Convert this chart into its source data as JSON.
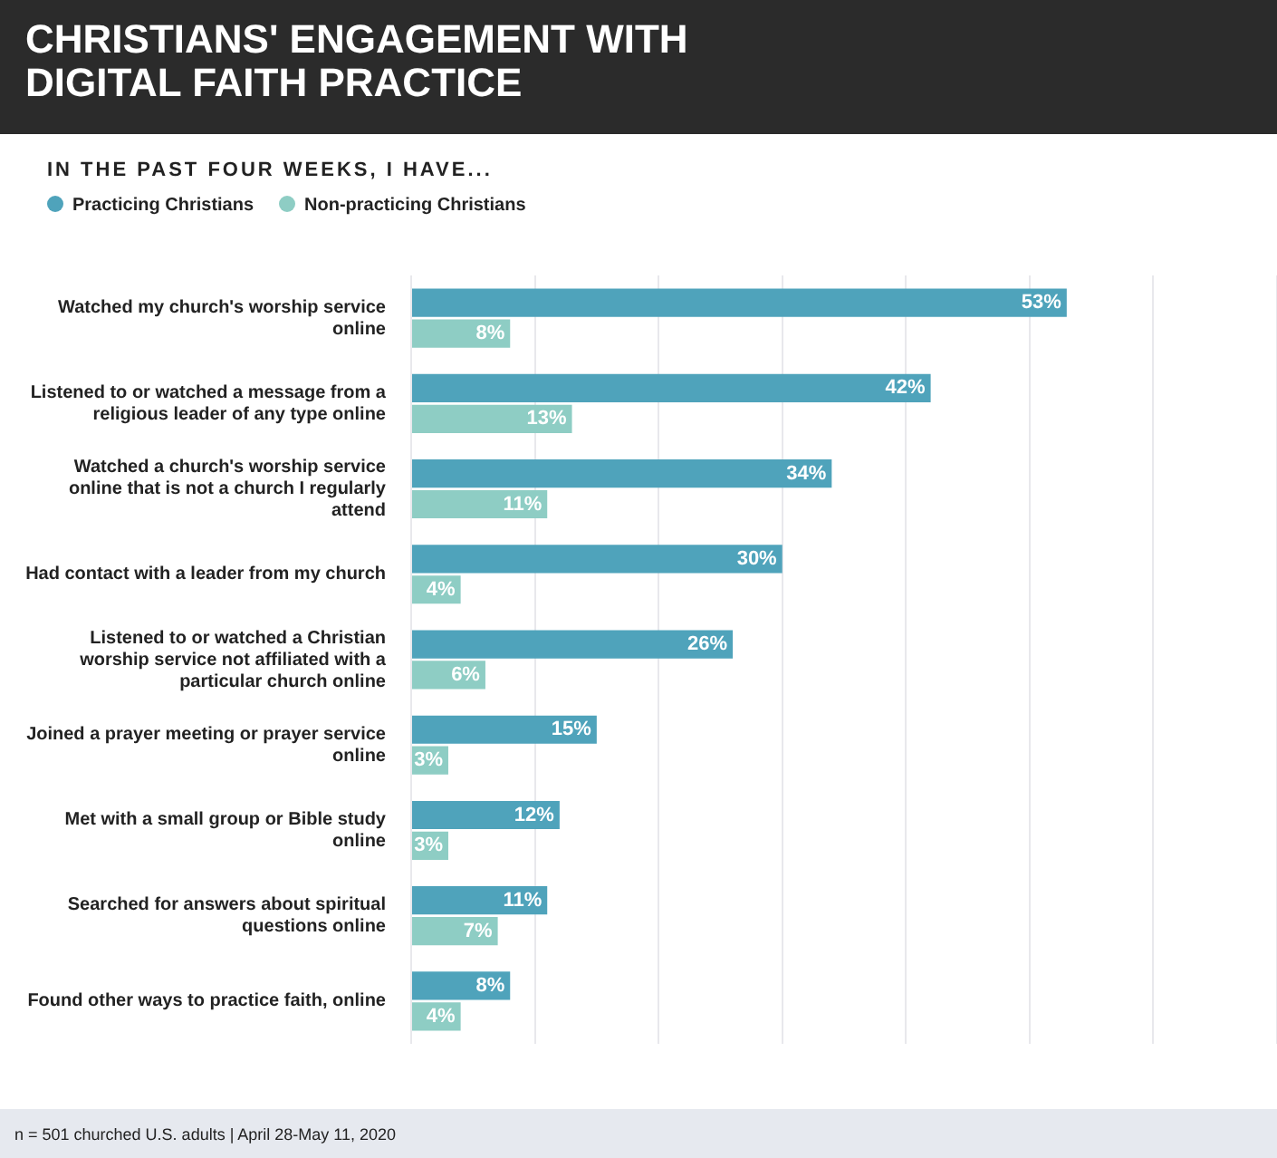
{
  "chart_data": {
    "type": "bar",
    "orientation": "horizontal",
    "title": "CHRISTIANS' ENGAGEMENT WITH DIGITAL FAITH PRACTICE",
    "subtitle": "IN THE PAST FOUR WEEKS, I HAVE...",
    "categories": [
      "Watched my church's worship service online",
      "Listened to or watched a message from a religious leader of any type online",
      "Watched a church's worship service online that is not a church I regularly attend",
      "Had contact with a leader from my church",
      "Listened to or watched a Christian worship service not affiliated with a particular church online",
      "Joined a prayer meeting or prayer service online",
      "Met with a small group or Bible study online",
      "Searched for answers about spiritual questions online",
      "Found other ways to practice faith, online"
    ],
    "series": [
      {
        "name": "Practicing Christians",
        "color": "#4fa3bb",
        "values": [
          53,
          42,
          34,
          30,
          26,
          15,
          12,
          11,
          8
        ],
        "value_labels": [
          "53%",
          "42%",
          "34%",
          "30%",
          "26%",
          "15%",
          "12%",
          "11%",
          "8%"
        ]
      },
      {
        "name": "Non-practicing Christians",
        "color": "#8ecdc4",
        "values": [
          8,
          13,
          11,
          4,
          6,
          3,
          3,
          7,
          4
        ],
        "value_labels": [
          "8%",
          "13%",
          "11%",
          "4%",
          "6%",
          "3%",
          "3%",
          "7%",
          "4%"
        ]
      }
    ],
    "xlim": [
      0,
      70
    ],
    "xticks": [
      {
        "value": 0,
        "label": null
      },
      {
        "value": 10,
        "label": null
      },
      {
        "value": 20,
        "label": null
      },
      {
        "value": 30,
        "label": null
      },
      {
        "value": 40,
        "label": null
      },
      {
        "value": 50,
        "label": null
      },
      {
        "value": 60,
        "label": null
      },
      {
        "value": 70,
        "label": null
      }
    ],
    "grid": "x",
    "legend": "top left",
    "tick_labels": "y",
    "annotations": [
      "n = 501 churched U.S. adults | April 28-May 11, 2020"
    ]
  }
}
